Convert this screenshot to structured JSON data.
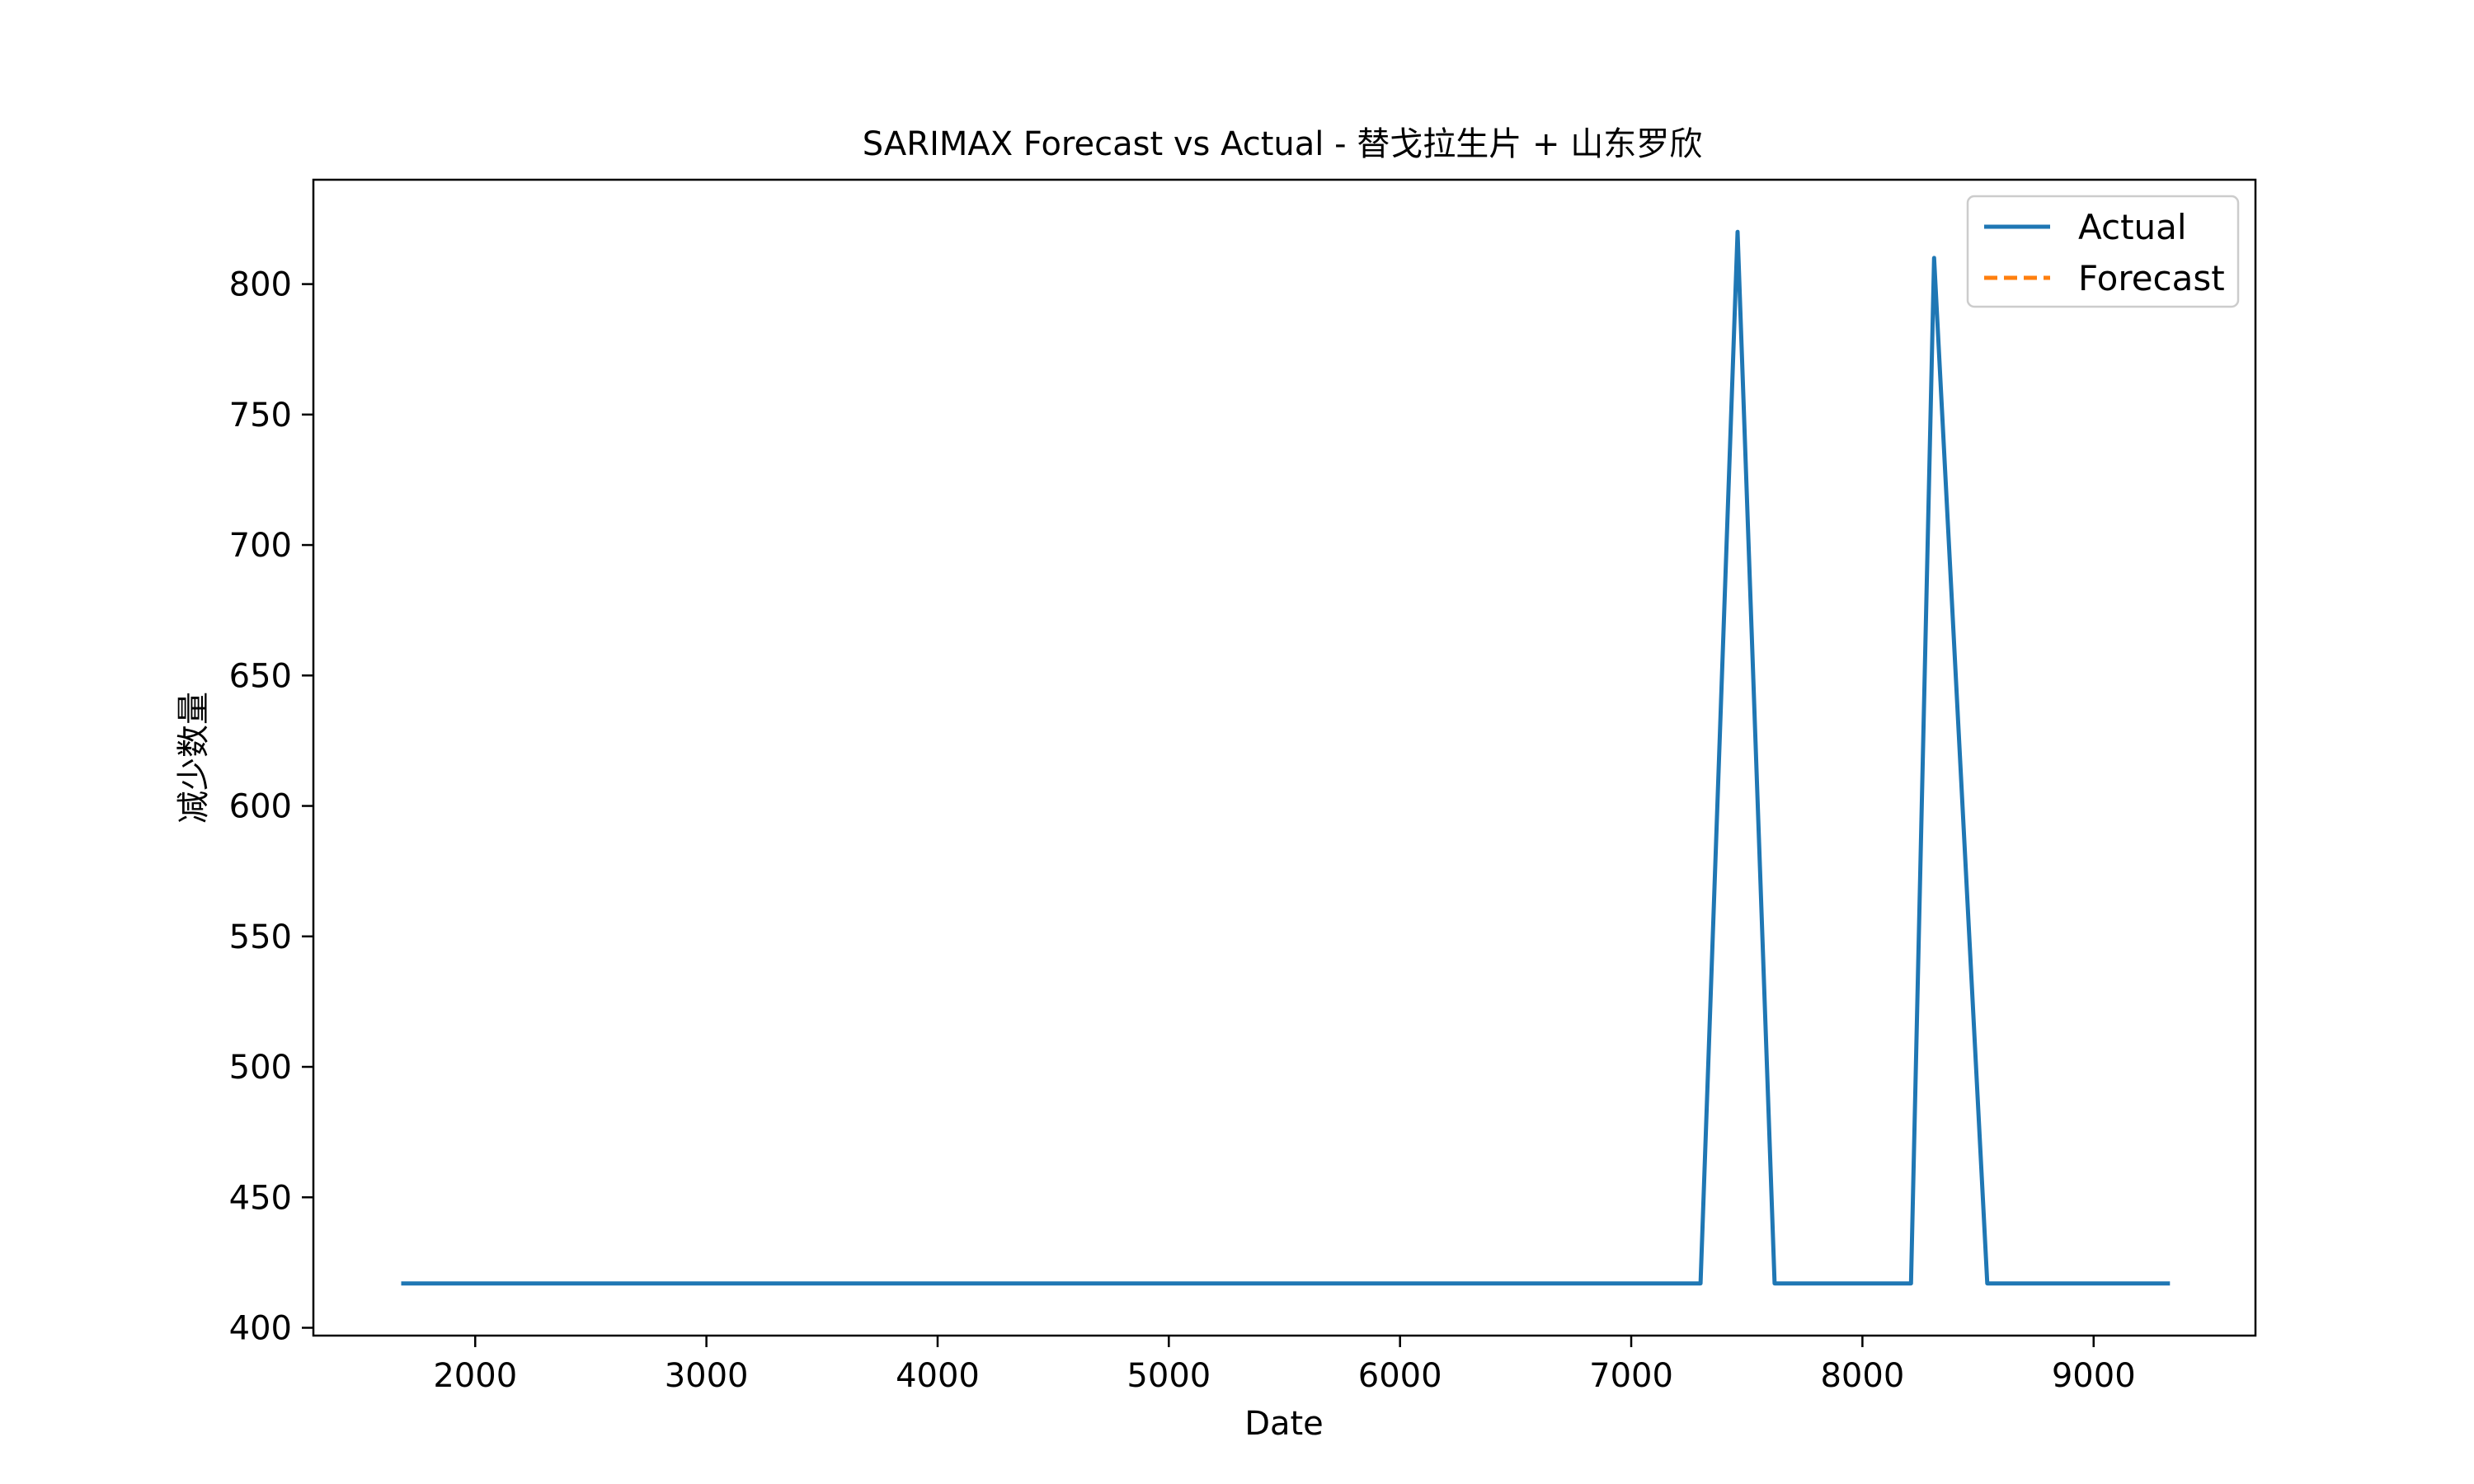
{
  "chart_data": {
    "type": "line",
    "title": "SARIMAX Forecast vs Actual - 替戈拉生片 + 山东罗欣",
    "xlabel": "Date",
    "ylabel": "减少数量",
    "xlim": [
      1300,
      9700
    ],
    "ylim": [
      397,
      840
    ],
    "x_ticks": [
      2000,
      3000,
      4000,
      5000,
      6000,
      7000,
      8000,
      9000
    ],
    "y_ticks": [
      400,
      450,
      500,
      550,
      600,
      650,
      700,
      750,
      800
    ],
    "grid": false,
    "legend": {
      "placement": "top-right"
    },
    "series": [
      {
        "name": "Actual",
        "style": "solid",
        "color": "#1f77b4",
        "x": [
          1680,
          7300,
          7460,
          7620,
          8210,
          8310,
          8540,
          9330
        ],
        "y": [
          417,
          417,
          820,
          417,
          417,
          810,
          417,
          417
        ]
      },
      {
        "name": "Forecast",
        "style": "dashed",
        "color": "#ff7f0e",
        "x": [],
        "y": []
      }
    ]
  }
}
